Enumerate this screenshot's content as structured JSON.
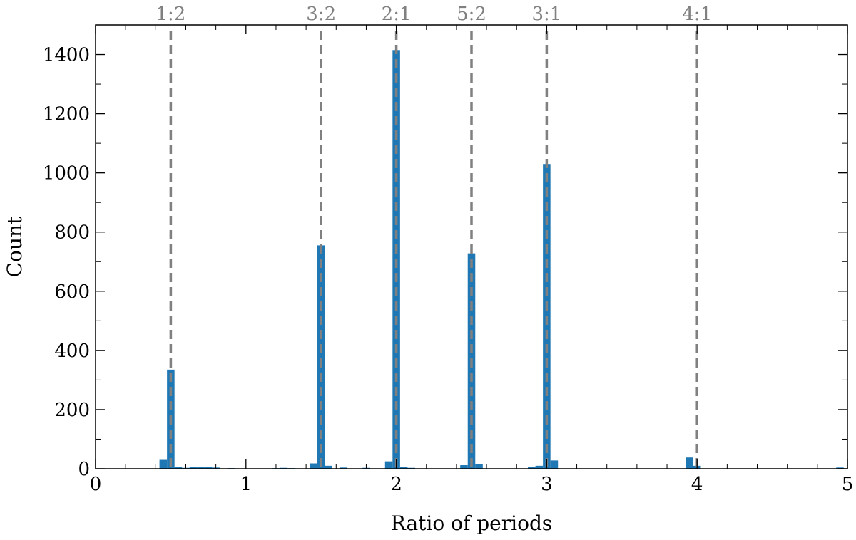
{
  "chart_data": {
    "type": "bar",
    "title": "",
    "xlabel": "Ratio of periods",
    "ylabel": "Count",
    "xlim": [
      0,
      5
    ],
    "ylim": [
      0,
      1500
    ],
    "xticks": [
      0,
      1,
      2,
      3,
      4,
      5
    ],
    "yticks": [
      0,
      200,
      400,
      600,
      800,
      1000,
      1200,
      1400
    ],
    "bin_width": 0.05,
    "bar_color": "#1f77b4",
    "bins": [
      {
        "x": 0.45,
        "count": 30
      },
      {
        "x": 0.5,
        "count": 335
      },
      {
        "x": 0.55,
        "count": 6
      },
      {
        "x": 0.6,
        "count": 3
      },
      {
        "x": 0.65,
        "count": 5
      },
      {
        "x": 0.7,
        "count": 5
      },
      {
        "x": 0.75,
        "count": 5
      },
      {
        "x": 0.8,
        "count": 4
      },
      {
        "x": 0.9,
        "count": 2
      },
      {
        "x": 1.2,
        "count": 2
      },
      {
        "x": 1.25,
        "count": 3
      },
      {
        "x": 1.3,
        "count": 2
      },
      {
        "x": 1.45,
        "count": 18
      },
      {
        "x": 1.5,
        "count": 755
      },
      {
        "x": 1.55,
        "count": 10
      },
      {
        "x": 1.65,
        "count": 4
      },
      {
        "x": 1.8,
        "count": 3
      },
      {
        "x": 1.95,
        "count": 25
      },
      {
        "x": 2.0,
        "count": 1415
      },
      {
        "x": 2.05,
        "count": 5
      },
      {
        "x": 2.1,
        "count": 3
      },
      {
        "x": 2.45,
        "count": 12
      },
      {
        "x": 2.5,
        "count": 728
      },
      {
        "x": 2.55,
        "count": 15
      },
      {
        "x": 2.9,
        "count": 5
      },
      {
        "x": 2.95,
        "count": 10
      },
      {
        "x": 3.0,
        "count": 1030
      },
      {
        "x": 3.05,
        "count": 28
      },
      {
        "x": 3.95,
        "count": 38
      },
      {
        "x": 4.0,
        "count": 10
      },
      {
        "x": 4.95,
        "count": 4
      }
    ],
    "resonance_color": "#808080",
    "resonances": [
      {
        "label": "1:2",
        "x": 0.5
      },
      {
        "label": "3:2",
        "x": 1.5
      },
      {
        "label": "2:1",
        "x": 2.0
      },
      {
        "label": "5:2",
        "x": 2.5
      },
      {
        "label": "3:1",
        "x": 3.0
      },
      {
        "label": "4:1",
        "x": 4.0
      }
    ]
  }
}
